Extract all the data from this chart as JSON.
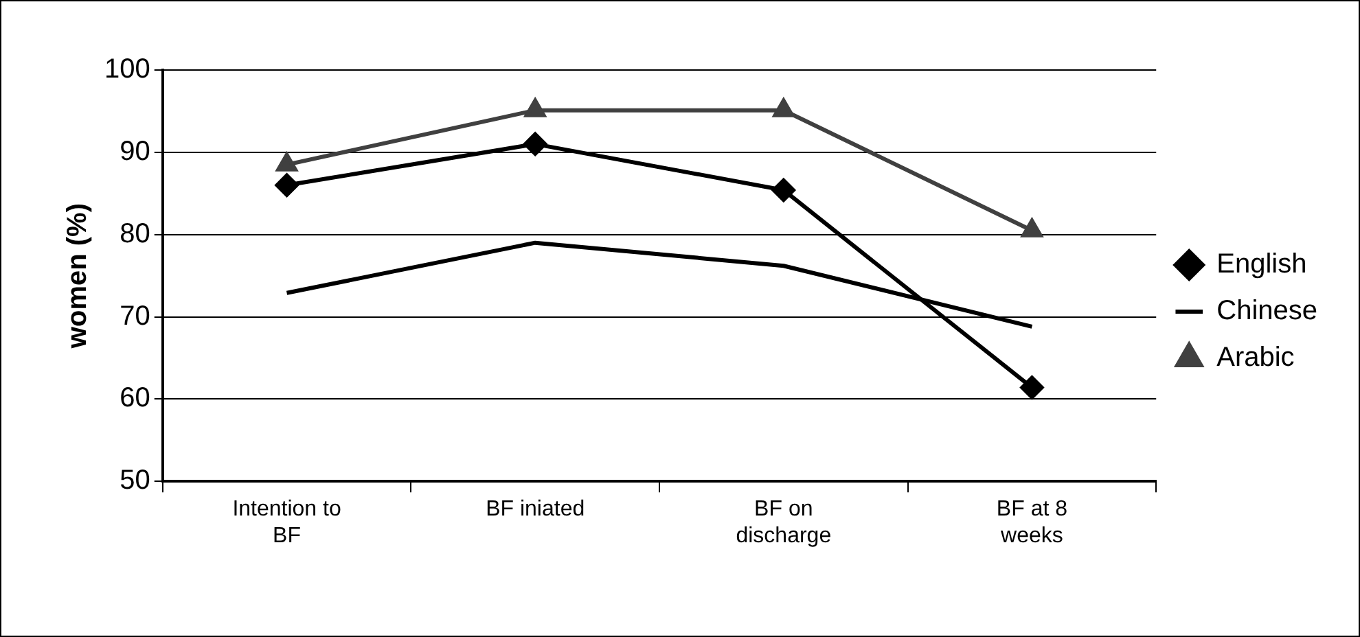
{
  "chart_data": {
    "type": "line",
    "ylabel": "women (%)",
    "categories": [
      "Intention to BF",
      "BF iniated",
      "BF on discharge",
      "BF at 8 weeks"
    ],
    "series": [
      {
        "name": "English",
        "color": "#000000",
        "marker": "diamond",
        "values": [
          86,
          91,
          85.4,
          61.4
        ]
      },
      {
        "name": "Chinese",
        "color": "#000000",
        "marker": "none",
        "values": [
          72.9,
          79,
          76.2,
          68.8
        ]
      },
      {
        "name": "Arabic",
        "color": "#404040",
        "marker": "triangle",
        "values": [
          88.5,
          95.1,
          95.1,
          80.5
        ]
      }
    ],
    "ylim": [
      50,
      100
    ],
    "yticks": [
      50,
      60,
      70,
      80,
      90,
      100
    ],
    "grid": "y",
    "legend": "right"
  }
}
